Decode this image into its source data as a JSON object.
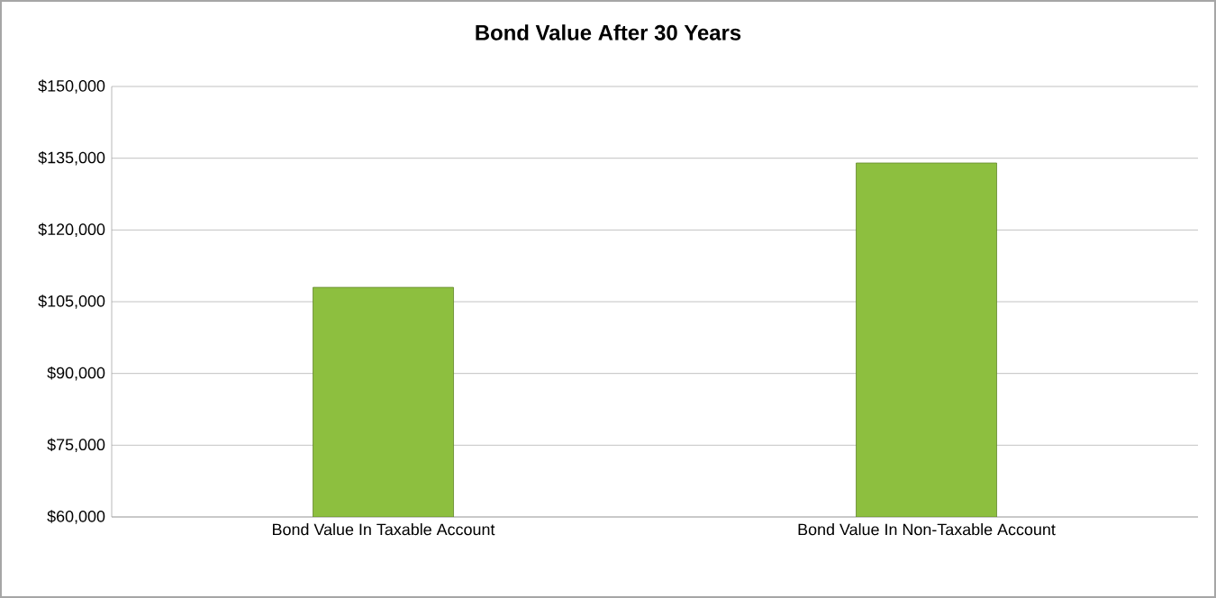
{
  "chart_data": {
    "type": "bar",
    "title": "Bond Value After 30 Years",
    "categories": [
      "Bond Value In Taxable Account",
      "Bond Value In Non-Taxable Account"
    ],
    "values": [
      108000,
      134000
    ],
    "color": "#8dbf3f",
    "ylim": [
      60000,
      150000
    ],
    "yticks": [
      {
        "value": 60000,
        "label": "$60,000"
      },
      {
        "value": 75000,
        "label": "$75,000"
      },
      {
        "value": 90000,
        "label": "$90,000"
      },
      {
        "value": 105000,
        "label": "$105,000"
      },
      {
        "value": 120000,
        "label": "$120,000"
      },
      {
        "value": 135000,
        "label": "$135,000"
      },
      {
        "value": 150000,
        "label": "$150,000"
      }
    ],
    "grid": "y"
  }
}
